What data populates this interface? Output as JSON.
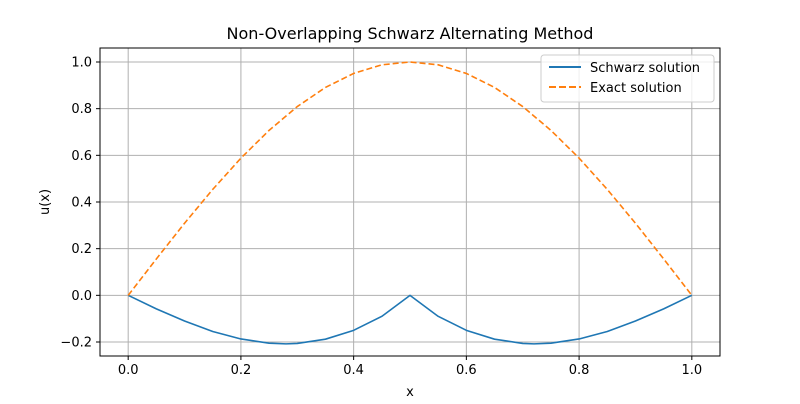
{
  "chart_data": {
    "type": "line",
    "title": "Non-Overlapping Schwarz Alternating Method",
    "xlabel": "x",
    "ylabel": "u(x)",
    "xlim": [
      -0.05,
      1.05
    ],
    "ylim": [
      -0.26,
      1.06
    ],
    "xticks": [
      0.0,
      0.2,
      0.4,
      0.6,
      0.8,
      1.0
    ],
    "xtick_labels": [
      "0.0",
      "0.2",
      "0.4",
      "0.6",
      "0.8",
      "1.0"
    ],
    "yticks": [
      -0.2,
      0.0,
      0.2,
      0.4,
      0.6,
      0.8,
      1.0
    ],
    "ytick_labels": [
      "−0.2",
      "0.0",
      "0.2",
      "0.4",
      "0.6",
      "0.8",
      "1.0"
    ],
    "grid": true,
    "legend_position": "top-right",
    "series": [
      {
        "name": "Schwarz solution",
        "color": "#1f77b4",
        "style": "solid",
        "x": [
          0.0,
          0.05,
          0.1,
          0.15,
          0.2,
          0.25,
          0.28,
          0.3,
          0.35,
          0.4,
          0.45,
          0.5,
          0.55,
          0.6,
          0.65,
          0.7,
          0.72,
          0.75,
          0.8,
          0.85,
          0.9,
          0.95,
          1.0
        ],
        "y": [
          0.0,
          -0.058,
          -0.11,
          -0.155,
          -0.187,
          -0.205,
          -0.208,
          -0.206,
          -0.188,
          -0.15,
          -0.09,
          0.0,
          -0.09,
          -0.15,
          -0.188,
          -0.206,
          -0.208,
          -0.205,
          -0.187,
          -0.155,
          -0.11,
          -0.058,
          0.0
        ]
      },
      {
        "name": "Exact solution",
        "color": "#ff7f0e",
        "style": "dashed",
        "x": [
          0.0,
          0.05,
          0.1,
          0.15,
          0.2,
          0.25,
          0.3,
          0.35,
          0.4,
          0.45,
          0.5,
          0.55,
          0.6,
          0.65,
          0.7,
          0.75,
          0.8,
          0.85,
          0.9,
          0.95,
          1.0
        ],
        "y": [
          0.0,
          0.156,
          0.309,
          0.454,
          0.588,
          0.707,
          0.809,
          0.891,
          0.951,
          0.988,
          1.0,
          0.988,
          0.951,
          0.891,
          0.809,
          0.707,
          0.588,
          0.454,
          0.309,
          0.156,
          0.0
        ]
      }
    ]
  }
}
